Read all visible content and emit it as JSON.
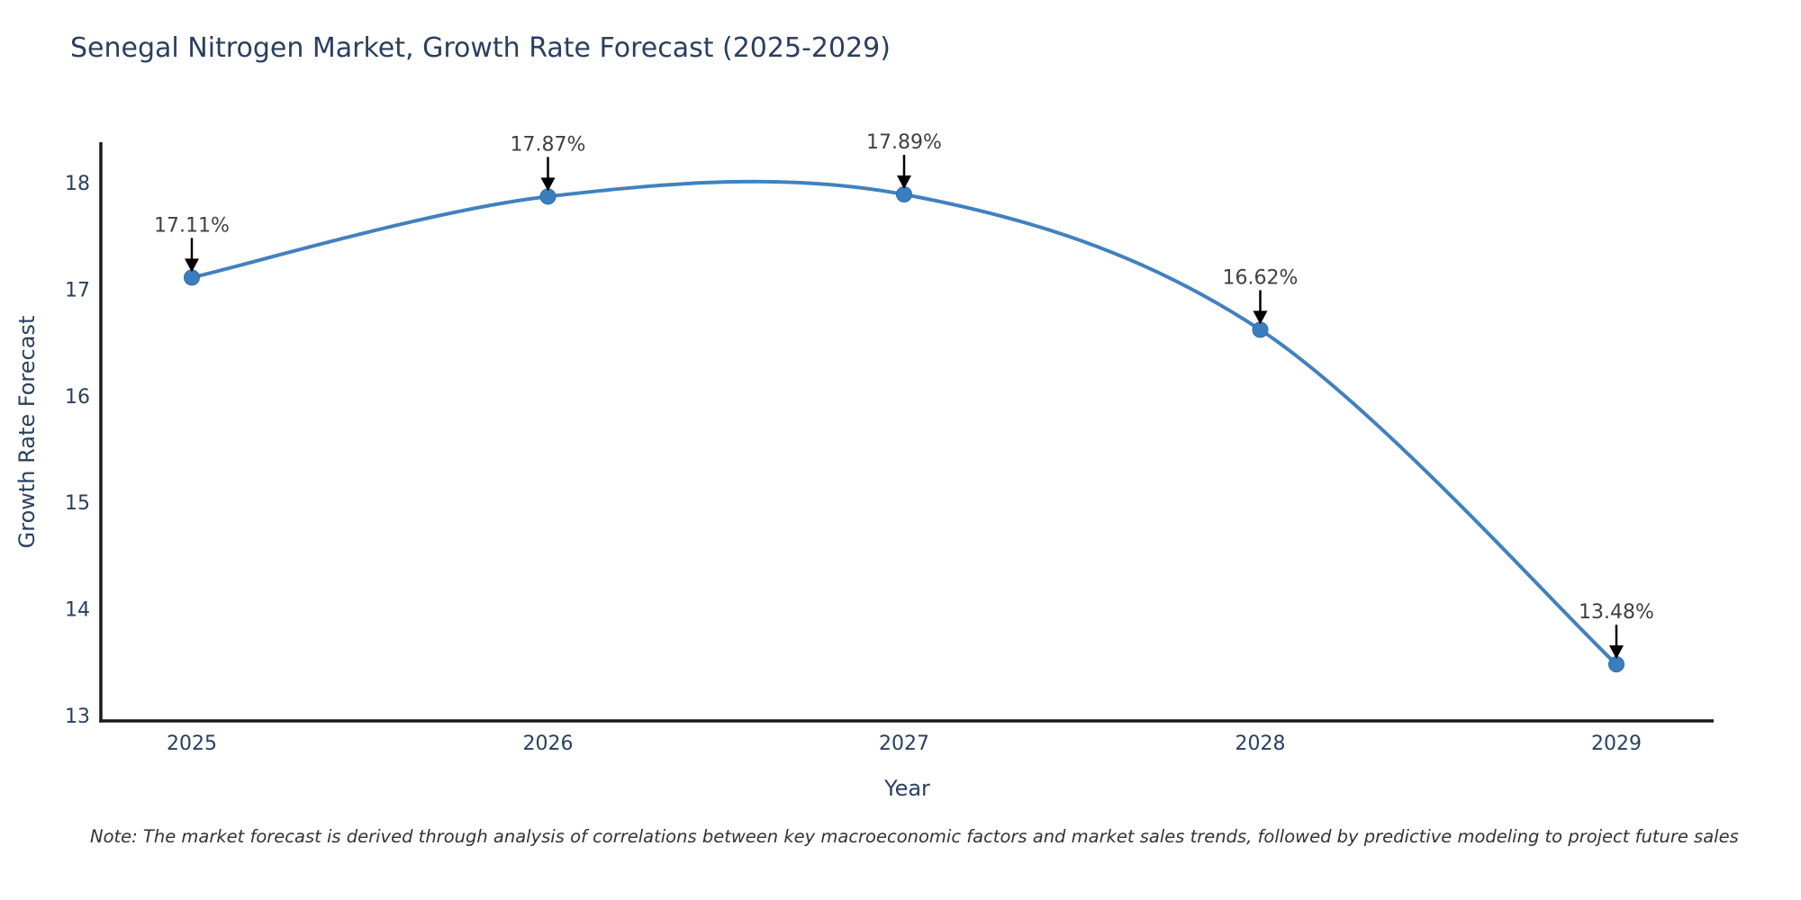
{
  "title": "Senegal Nitrogen Market, Growth Rate Forecast (2025-2029)",
  "note": "Note: The market forecast is derived through analysis of correlations between key macroeconomic factors and market sales trends, followed by predictive modeling to project future sales",
  "chart_data": {
    "type": "line",
    "title": "Senegal Nitrogen Market, Growth Rate Forecast (2025-2029)",
    "x": [
      2025,
      2026,
      2027,
      2028,
      2029
    ],
    "values": [
      17.11,
      17.87,
      17.89,
      16.62,
      13.48
    ],
    "point_labels": [
      "17.11%",
      "17.87%",
      "17.89%",
      "16.62%",
      "13.48%"
    ],
    "xlabel": "Year",
    "ylabel": "Growth Rate Forecast",
    "yticks": [
      13,
      14,
      15,
      16,
      17,
      18
    ],
    "xticks": [
      "2025",
      "2026",
      "2027",
      "2028",
      "2029"
    ],
    "ylim": [
      12.95,
      18.35
    ],
    "line_shape": "spline",
    "grid": false,
    "legend": "none",
    "annotation_style": "value-label-with-down-arrow",
    "colors": {
      "line": "#4181bd",
      "marker_fill": "#3a7ebf",
      "marker_edge": "#2e6da4",
      "axis_line": "#1a1a1a",
      "tick_text": "#2a3f5f",
      "axis_title_text": "#2a3f5f",
      "annotation_text": "#404040",
      "arrow": "#000000",
      "background": "#ffffff"
    }
  }
}
